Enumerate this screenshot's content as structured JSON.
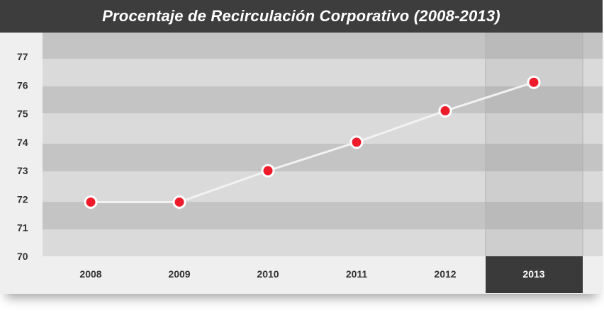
{
  "chart_data": {
    "type": "line",
    "title": "Procentaje de Recirculación Corporativo (2008-2013)",
    "categories": [
      "2008",
      "2009",
      "2010",
      "2011",
      "2012",
      "2013"
    ],
    "values": [
      71.9,
      71.9,
      73.0,
      74.0,
      75.1,
      76.1
    ],
    "ylim": [
      70,
      77
    ],
    "yticks": [
      "70",
      "71",
      "72",
      "73",
      "74",
      "75",
      "76",
      "77"
    ],
    "highlighted_category": "2013",
    "grid": true,
    "legend": "none",
    "colors": {
      "title_bar": "#3d3d3d",
      "band_dark": "#c4c4c4",
      "band_light": "#dadada",
      "line": "#f2f2f2",
      "marker": "#ee1c2b",
      "marker_stroke": "#ffffff",
      "highlight": "#3a3a3a"
    }
  }
}
